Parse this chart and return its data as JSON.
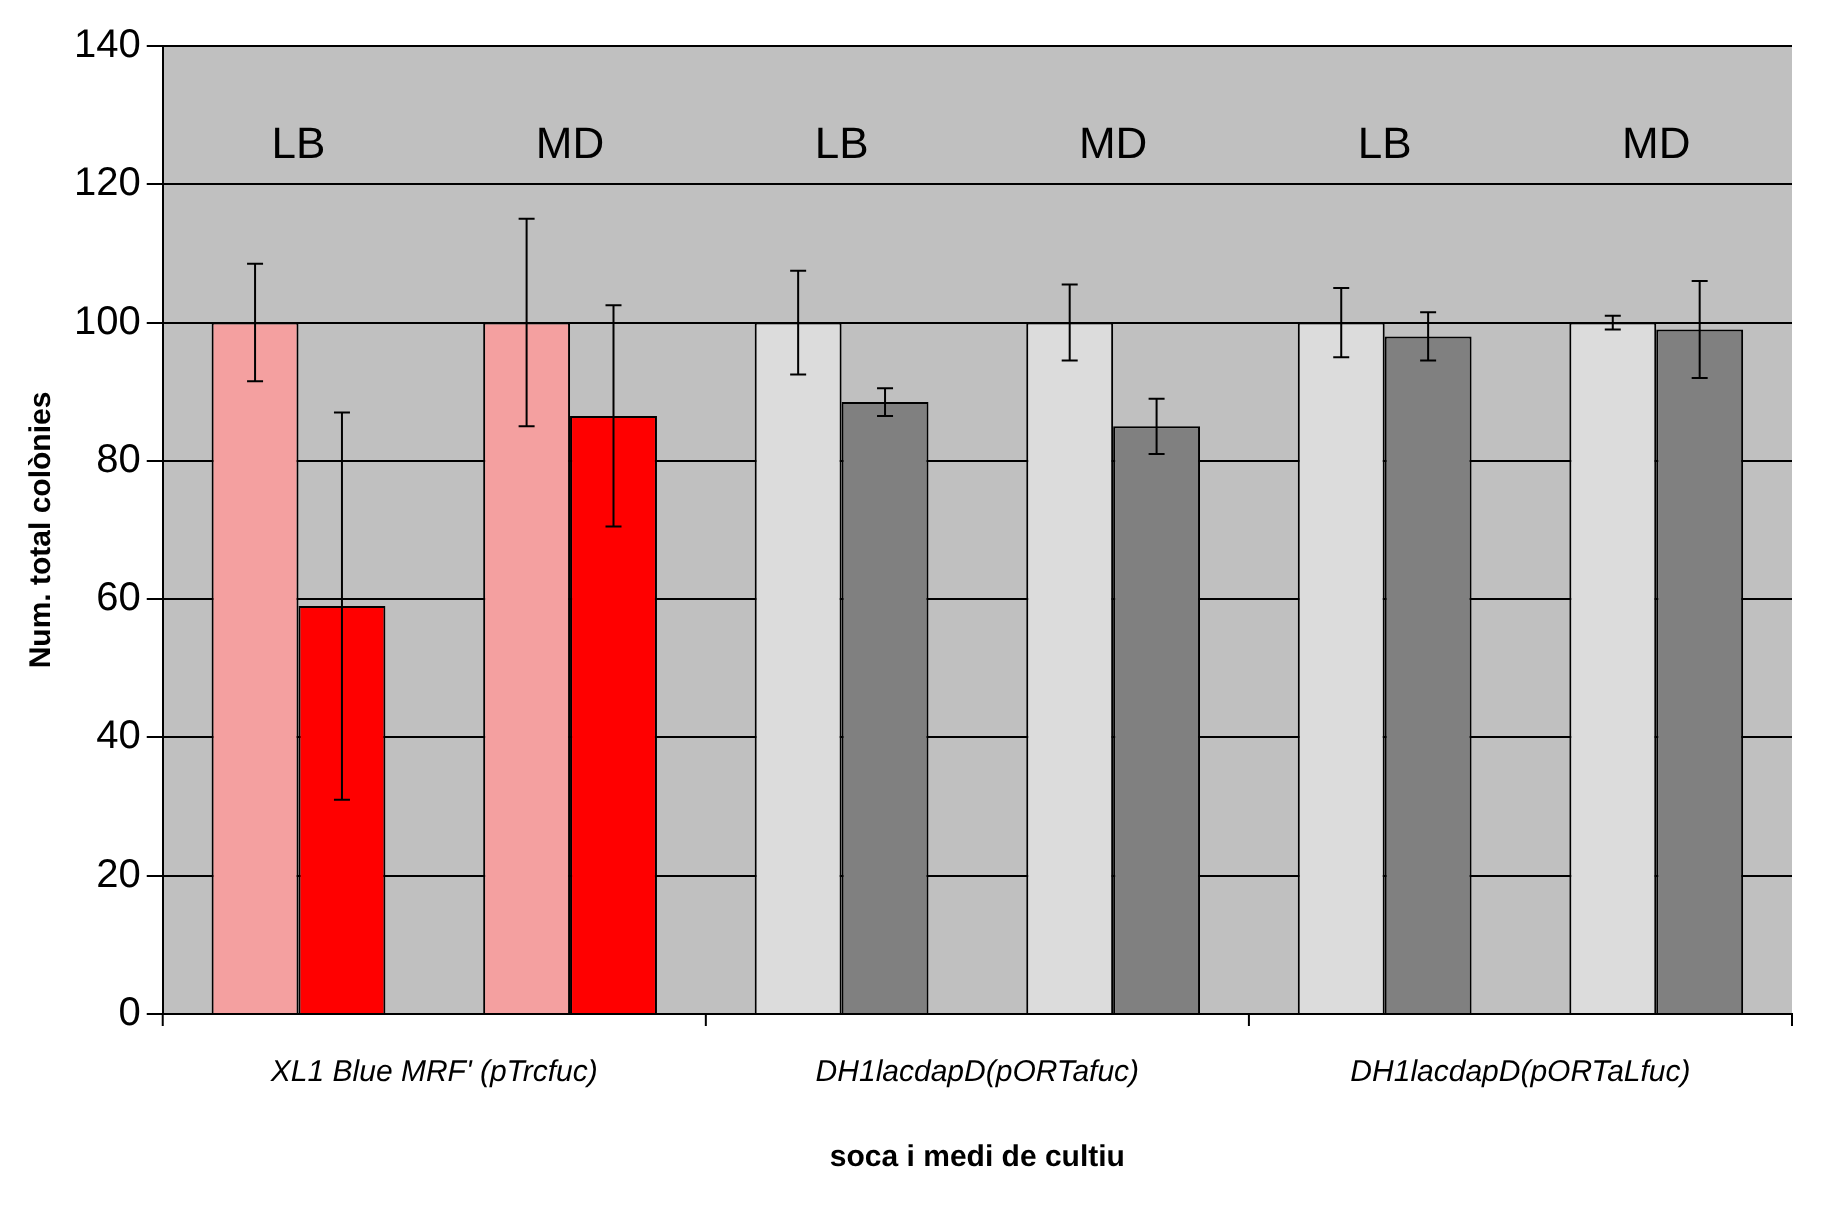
{
  "chart_data": {
    "type": "bar",
    "xlabel": "soca i medi de cultiu",
    "ylabel": "Num. total colònies",
    "categories": [
      "LB",
      "MD",
      "LB",
      "MD",
      "LB",
      "MD"
    ],
    "series": [
      {
        "colors": [
          "#f4a0a0",
          "#f4a0a0",
          "#dcdcdc",
          "#dcdcdc",
          "#dcdcdc",
          "#dcdcdc"
        ],
        "values": [
          100,
          100,
          100,
          100,
          100,
          100
        ],
        "errors": [
          8.5,
          15,
          7.5,
          5.5,
          5,
          1
        ]
      },
      {
        "colors": [
          "#ff0000",
          "#ff0000",
          "#808080",
          "#808080",
          "#808080",
          "#808080"
        ],
        "values": [
          59,
          86.5,
          88.5,
          85,
          98,
          99
        ],
        "errors": [
          28,
          16,
          2,
          4,
          3.5,
          7
        ]
      }
    ],
    "annotations": [
      "XL1 Blue MRF' (pTrcfuc)",
      "DH1lacdapD(pORTafuc)",
      "DH1lacdapD(pORTaLfuc)"
    ],
    "ylim": [
      0,
      140
    ],
    "yticks": [
      0,
      20,
      40,
      60,
      80,
      100,
      120,
      140
    ],
    "grid": "y",
    "legend": false
  }
}
